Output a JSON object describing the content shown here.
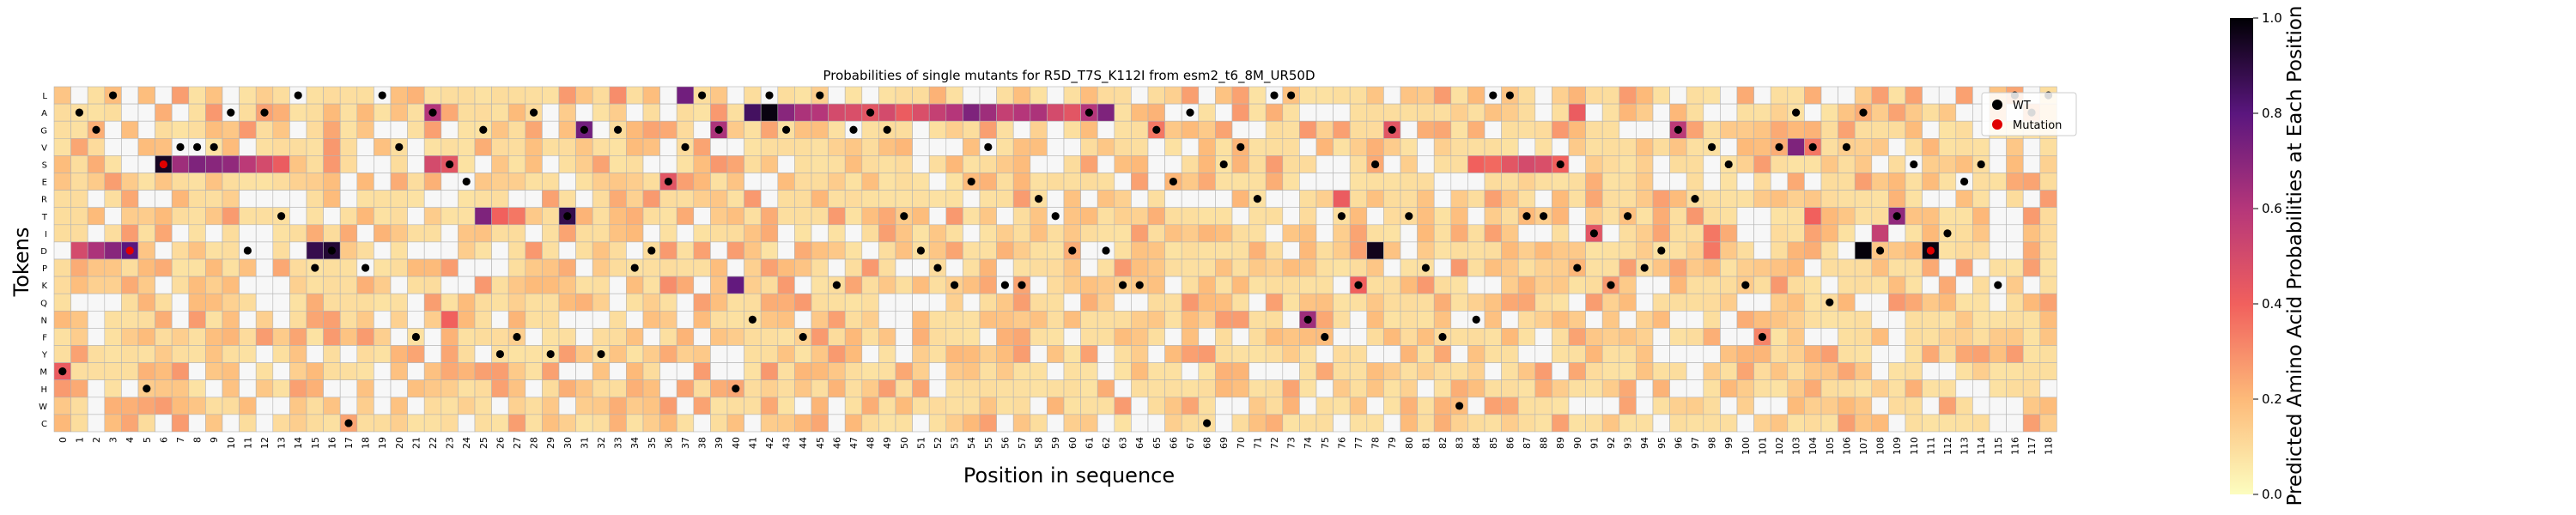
{
  "chart_data": {
    "type": "heatmap",
    "title": "Probabilities of single mutants for R5D_T7S_K112I from esm2_t6_8M_UR50D",
    "xlabel": "Position in sequence",
    "ylabel": "Tokens",
    "colorbar_label": "Predicted Amino Acid Probabilities at Each Position",
    "colorbar_ticks": [
      "0.0",
      "0.2",
      "0.4",
      "0.6",
      "0.8",
      "1.0"
    ],
    "colorbar_range": [
      0,
      1
    ],
    "colormap": "magma_r",
    "tokens": [
      "L",
      "A",
      "G",
      "V",
      "S",
      "E",
      "R",
      "T",
      "I",
      "D",
      "P",
      "K",
      "Q",
      "N",
      "F",
      "Y",
      "M",
      "H",
      "W",
      "C"
    ],
    "positions": [
      0,
      1,
      2,
      3,
      4,
      5,
      6,
      7,
      8,
      9,
      10,
      11,
      12,
      13,
      14,
      15,
      16,
      17,
      18,
      19,
      20,
      21,
      22,
      23,
      24,
      25,
      26,
      27,
      28,
      29,
      30,
      31,
      32,
      33,
      34,
      35,
      36,
      37,
      38,
      39,
      40,
      41,
      42,
      43,
      44,
      45,
      46,
      47,
      48,
      49,
      50,
      51,
      52,
      53,
      54,
      55,
      56,
      57,
      58,
      59,
      60,
      61,
      62,
      63,
      64,
      65,
      66,
      67,
      68,
      69,
      70,
      71,
      72,
      73,
      74,
      75,
      76,
      77,
      78,
      79,
      80,
      81,
      82,
      83,
      84,
      85,
      86,
      87,
      88,
      89,
      90,
      91,
      92,
      93,
      94,
      95,
      96,
      97,
      98,
      99,
      100,
      101,
      102,
      103,
      104,
      105,
      106,
      107,
      108,
      109,
      110,
      111,
      112,
      113,
      114,
      115,
      116,
      117,
      118
    ],
    "wt_tokens": [
      "M",
      "A",
      "G",
      "L",
      "D",
      "H",
      "S",
      "V",
      "V",
      "V",
      "A",
      "D",
      "A",
      "T",
      "L",
      "P",
      "D",
      "C",
      "P",
      "L",
      "V",
      "F",
      "A",
      "S",
      "E",
      "G",
      "Y",
      "F",
      "A",
      "Y",
      "T",
      "G",
      "Y",
      "G",
      "P",
      "D",
      "E",
      "V",
      "L",
      "G",
      "H",
      "N",
      "L",
      "G",
      "F",
      "L",
      "K",
      "G",
      "A",
      "G",
      "T",
      "D",
      "P",
      "K",
      "E",
      "V",
      "K",
      "K",
      "R",
      "T",
      "D",
      "A",
      "D",
      "K",
      "K",
      "G",
      "E",
      "A",
      "C",
      "S",
      "V",
      "R",
      "L",
      "L",
      "N",
      "F",
      "T",
      "K",
      "S",
      "G",
      "T",
      "P",
      "F",
      "W",
      "N",
      "L",
      "L",
      "T",
      "T",
      "S",
      "P",
      "I",
      "K",
      "T",
      "P",
      "D",
      "G",
      "R",
      "V",
      "S",
      "K",
      "F",
      "V",
      "A",
      "V",
      "Q",
      "V",
      "A",
      "D",
      "T",
      "S",
      "D",
      "I",
      "E",
      "S",
      "K",
      "L",
      "A",
      "L"
    ],
    "mutations": [
      {
        "position": 4,
        "token": "D"
      },
      {
        "position": 6,
        "token": "S"
      },
      {
        "position": 111,
        "token": "I"
      }
    ],
    "highlights": [
      {
        "token": "S",
        "positions": [
          6,
          7,
          8,
          9,
          10,
          11,
          12
        ],
        "values": [
          0.95,
          0.65,
          0.72,
          0.7,
          0.68,
          0.58,
          0.5
        ]
      },
      {
        "token": "S",
        "positions": [
          13
        ],
        "values": [
          0.42
        ]
      },
      {
        "token": "S",
        "positions": [
          22,
          23
        ],
        "values": [
          0.5,
          0.45
        ]
      },
      {
        "token": "S",
        "positions": [
          84,
          85,
          86,
          87,
          88,
          89
        ],
        "values": [
          0.4,
          0.38,
          0.45,
          0.5,
          0.48,
          0.4
        ]
      },
      {
        "token": "D",
        "positions": [
          1,
          2,
          3,
          4
        ],
        "values": [
          0.5,
          0.62,
          0.7,
          0.8
        ]
      },
      {
        "token": "D",
        "positions": [
          15,
          16
        ],
        "values": [
          0.88,
          0.92
        ]
      },
      {
        "token": "D",
        "positions": [
          78
        ],
        "values": [
          0.96
        ]
      },
      {
        "token": "D",
        "positions": [
          107
        ],
        "values": [
          0.99
        ]
      },
      {
        "token": "D",
        "positions": [
          111
        ],
        "values": [
          0.98
        ]
      },
      {
        "token": "D",
        "positions": [
          98
        ],
        "values": [
          0.35
        ]
      },
      {
        "token": "A",
        "positions": [
          22
        ],
        "values": [
          0.6
        ]
      },
      {
        "token": "A",
        "positions": [
          41,
          42,
          43,
          44,
          45
        ],
        "values": [
          0.85,
          0.98,
          0.7,
          0.62,
          0.6
        ]
      },
      {
        "token": "A",
        "positions": [
          46,
          47,
          48,
          49,
          50,
          51,
          52,
          53,
          54,
          55,
          56,
          57,
          58,
          59,
          60,
          61,
          62
        ],
        "values": [
          0.5,
          0.48,
          0.45,
          0.5,
          0.42,
          0.48,
          0.55,
          0.6,
          0.72,
          0.65,
          0.55,
          0.6,
          0.62,
          0.5,
          0.45,
          0.6,
          0.72
        ]
      },
      {
        "token": "A",
        "positions": [
          90
        ],
        "values": [
          0.42
        ]
      },
      {
        "token": "G",
        "positions": [
          31
        ],
        "values": [
          0.75
        ]
      },
      {
        "token": "G",
        "positions": [
          39
        ],
        "values": [
          0.62
        ]
      },
      {
        "token": "G",
        "positions": [
          79
        ],
        "values": [
          0.45
        ]
      },
      {
        "token": "G",
        "positions": [
          96
        ],
        "values": [
          0.58
        ]
      },
      {
        "token": "G",
        "positions": [
          65
        ],
        "values": [
          0.35
        ]
      },
      {
        "token": "V",
        "positions": [
          103
        ],
        "values": [
          0.72
        ]
      },
      {
        "token": "V",
        "positions": [
          104
        ],
        "values": [
          0.35
        ]
      },
      {
        "token": "T",
        "positions": [
          25
        ],
        "values": [
          0.72
        ]
      },
      {
        "token": "T",
        "positions": [
          30
        ],
        "values": [
          0.88
        ]
      },
      {
        "token": "T",
        "positions": [
          109
        ],
        "values": [
          0.68
        ]
      },
      {
        "token": "T",
        "positions": [
          26,
          27
        ],
        "values": [
          0.4,
          0.35
        ]
      },
      {
        "token": "T",
        "positions": [
          104
        ],
        "values": [
          0.4
        ]
      },
      {
        "token": "E",
        "positions": [
          36
        ],
        "values": [
          0.45
        ]
      },
      {
        "token": "R",
        "positions": [
          76
        ],
        "values": [
          0.42
        ]
      },
      {
        "token": "I",
        "positions": [
          91
        ],
        "values": [
          0.45
        ]
      },
      {
        "token": "I",
        "positions": [
          98
        ],
        "values": [
          0.35
        ]
      },
      {
        "token": "I",
        "positions": [
          108
        ],
        "values": [
          0.55
        ]
      },
      {
        "token": "K",
        "positions": [
          40
        ],
        "values": [
          0.78
        ]
      },
      {
        "token": "K",
        "positions": [
          77
        ],
        "values": [
          0.4
        ]
      },
      {
        "token": "K",
        "positions": [
          36
        ],
        "values": [
          0.3
        ]
      },
      {
        "token": "N",
        "positions": [
          23
        ],
        "values": [
          0.4
        ]
      },
      {
        "token": "N",
        "positions": [
          74
        ],
        "values": [
          0.65
        ]
      },
      {
        "token": "F",
        "positions": [
          101
        ],
        "values": [
          0.32
        ]
      },
      {
        "token": "M",
        "positions": [
          0
        ],
        "values": [
          0.42
        ]
      },
      {
        "token": "L",
        "positions": [
          37
        ],
        "values": [
          0.75
        ]
      },
      {
        "token": "L",
        "positions": [
          33
        ],
        "values": [
          0.3
        ]
      }
    ],
    "legend": [
      {
        "label": "WT",
        "color": "#000000"
      },
      {
        "label": "Mutation",
        "color": "#e00000"
      }
    ],
    "legend_placement": "top-right"
  }
}
